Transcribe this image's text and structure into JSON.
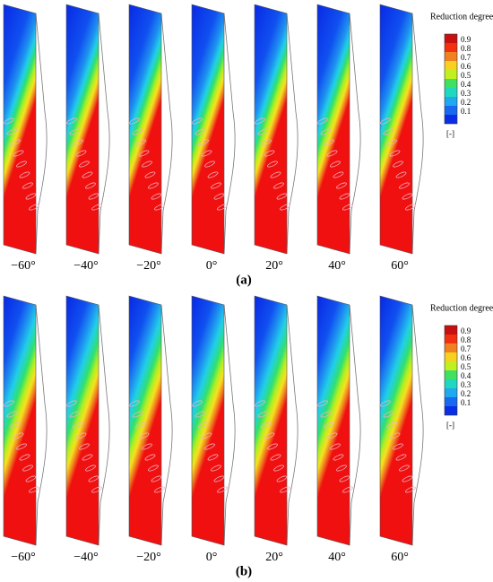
{
  "panels": [
    {
      "label": "(a)",
      "angles": [
        "−60°",
        "−40°",
        "−20°",
        "0°",
        "20°",
        "40°",
        "60°"
      ],
      "colorbar": {
        "title": "Reduction degree",
        "ticks": [
          0.9,
          0.8,
          0.7,
          0.6,
          0.5,
          0.4,
          0.3,
          0.2,
          0.1
        ],
        "unit": "[-]"
      }
    },
    {
      "label": "(b)",
      "angles": [
        "−60°",
        "−40°",
        "−20°",
        "0°",
        "20°",
        "40°",
        "60°"
      ],
      "colorbar": {
        "title": "Reduction degree",
        "ticks": [
          0.9,
          0.8,
          0.7,
          0.6,
          0.5,
          0.4,
          0.3,
          0.2,
          0.1
        ],
        "unit": "[-]"
      }
    }
  ]
}
